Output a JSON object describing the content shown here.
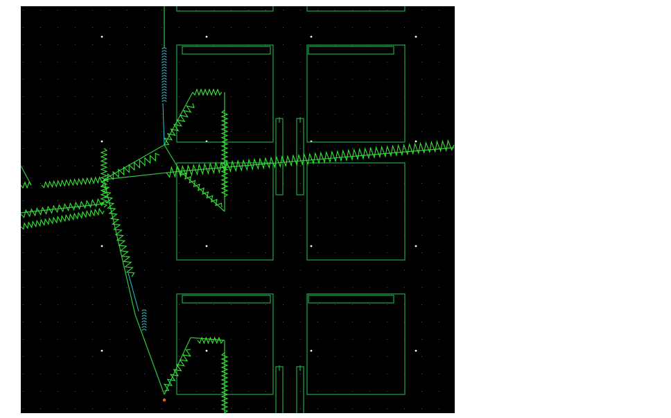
{
  "schematic": {
    "background_color": "#000000",
    "grid_minor_color": "#5a5a5a",
    "grid_major_color": "#ffffff",
    "wire_color": "#2ecc40",
    "spring_color": "#39e639",
    "frame_color": "#1fa84a",
    "coil_color": "#26c6da",
    "node_color": "#e8612c"
  },
  "page": {
    "background_color": "#ffffff"
  }
}
